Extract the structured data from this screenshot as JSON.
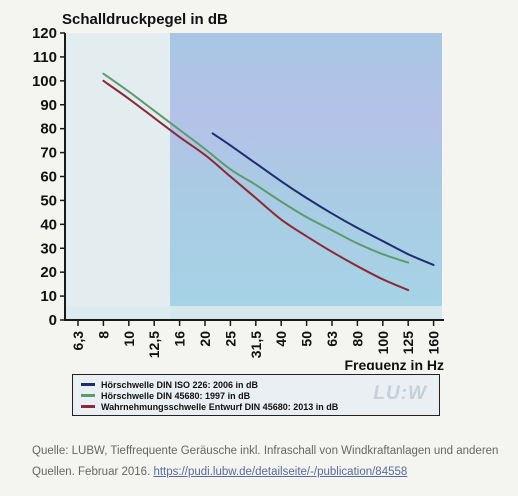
{
  "chart_data": {
    "type": "line",
    "title": "Schalldruckpegel in dB",
    "xlabel": "Frequenz in Hz",
    "ylabel": "Schalldruckpegel in dB",
    "x_categories": [
      "6,3",
      "8",
      "10",
      "12,5",
      "16",
      "20",
      "25",
      "31,5",
      "40",
      "50",
      "63",
      "80",
      "100",
      "125",
      "160"
    ],
    "yticks": [
      0,
      10,
      20,
      30,
      40,
      50,
      60,
      70,
      80,
      90,
      100,
      110,
      120
    ],
    "ylim": [
      0,
      120
    ],
    "grid": false,
    "legend_position": "bottom",
    "series": [
      {
        "name": "Hörschwelle DIN ISO 226: 2006 in dB",
        "color": "#1e2d6e",
        "points": [
          [
            5.3,
            78
          ],
          [
            6,
            73
          ],
          [
            7,
            65.5
          ],
          [
            8,
            58
          ],
          [
            9,
            51
          ],
          [
            10,
            44.5
          ],
          [
            11,
            38.5
          ],
          [
            12,
            33
          ],
          [
            13,
            27.5
          ],
          [
            14,
            23
          ]
        ]
      },
      {
        "name": "Hörschwelle DIN 45680: 1997 in dB",
        "color": "#5f9a6e",
        "points": [
          [
            1,
            103
          ],
          [
            2,
            95.5
          ],
          [
            3,
            87.5
          ],
          [
            4,
            79.5
          ],
          [
            5,
            71.5
          ],
          [
            6,
            63
          ],
          [
            7,
            56.5
          ],
          [
            8,
            49.5
          ],
          [
            9,
            43
          ],
          [
            10,
            37.5
          ],
          [
            11,
            32
          ],
          [
            12,
            27.5
          ],
          [
            13,
            24
          ]
        ]
      },
      {
        "name": "Wahrnehmungsschwelle Entwurf DIN 45680: 2013 in dB",
        "color": "#8a2a38",
        "points": [
          [
            1,
            100
          ],
          [
            2,
            92.5
          ],
          [
            3,
            84.5
          ],
          [
            4,
            76.5
          ],
          [
            5,
            69
          ],
          [
            6,
            60
          ],
          [
            7,
            51
          ],
          [
            8,
            42
          ],
          [
            9,
            35
          ],
          [
            10,
            28.5
          ],
          [
            11,
            22.5
          ],
          [
            12,
            17
          ],
          [
            13,
            12.5
          ]
        ]
      }
    ]
  },
  "legend": {
    "items": [
      {
        "label": "Hörschwelle DIN ISO 226: 2006 in dB",
        "color": "#1e2d6e"
      },
      {
        "label": "Hörschwelle DIN 45680: 1997 in dB",
        "color": "#5f9a6e"
      },
      {
        "label": "Wahrnehmungsschwelle Entwurf DIN 45680: 2013 in dB",
        "color": "#8a2a38"
      }
    ],
    "logo_text": "LU:W"
  },
  "caption": {
    "text": "Quelle: LUBW, Tieffrequente Geräusche inkl. Infraschall von Windkraftanlagen und anderen Quellen. Februar 2016. ",
    "link": "https://pudi.lubw.de/detailseite/-/publication/84558"
  },
  "colors": {
    "plot_bg_left": "#e4eef0",
    "plot_bg_right": "#a9cde2",
    "axis": "#1a1a1a"
  }
}
